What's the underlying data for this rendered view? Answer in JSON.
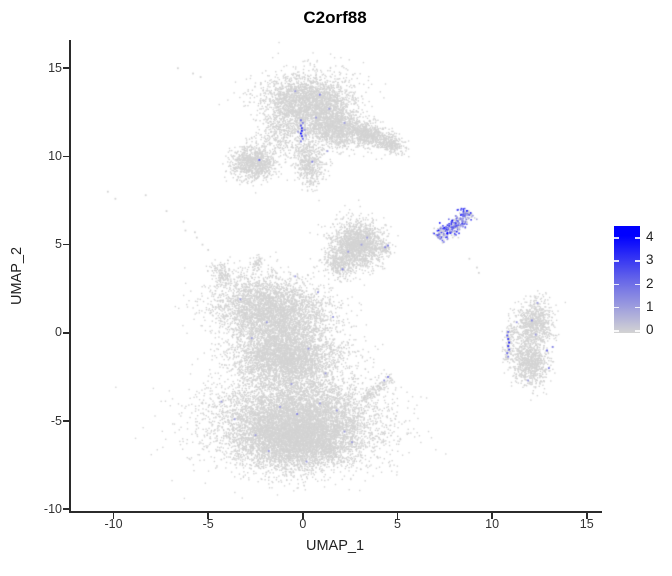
{
  "title": "C2orf88",
  "axes": {
    "x": {
      "label": "UMAP_1",
      "tick_labels": [
        "-10",
        "-5",
        "0",
        "5",
        "10",
        "15"
      ],
      "tick_values": [
        -10,
        -5,
        0,
        5,
        10,
        15
      ]
    },
    "y": {
      "label": "UMAP_2",
      "tick_labels": [
        "15",
        "10",
        "5",
        "0",
        "-5",
        "-10"
      ],
      "tick_values": [
        15,
        10,
        5,
        0,
        -5,
        -10
      ]
    }
  },
  "legend": {
    "tick_labels": [
      "4",
      "3",
      "2",
      "1",
      "0"
    ],
    "tick_values": [
      4,
      3,
      2,
      1,
      0
    ],
    "low_color": "#d3d3d3",
    "high_color": "#0000ff",
    "value_max_shown": 4.6
  },
  "chart_data": {
    "type": "scatter",
    "title": "C2orf88",
    "xlabel": "UMAP_1",
    "ylabel": "UMAP_2",
    "xlim": [
      -12.3,
      15.7
    ],
    "ylim": [
      -10.1,
      16.6
    ],
    "grid": false,
    "legend_position": "right",
    "point_color_low": "#d3d3d3",
    "point_color_high": "#0000ff",
    "color_scale_range": [
      0,
      4
    ],
    "clusters": [
      {
        "name": "top-dome",
        "kind": "gauss",
        "cx": 0.3,
        "cy": 13.0,
        "rx": 2.4,
        "ry": 1.7,
        "rot": 0,
        "n": 2800
      },
      {
        "name": "top-dome-lower-right",
        "kind": "gauss",
        "cx": 1.7,
        "cy": 11.6,
        "rx": 1.5,
        "ry": 1.1,
        "rot": -15,
        "n": 1100
      },
      {
        "name": "top-right-arm",
        "kind": "gauss",
        "cx": 3.5,
        "cy": 11.2,
        "rx": 1.3,
        "ry": 0.7,
        "rot": -18,
        "n": 650
      },
      {
        "name": "top-arm-tip",
        "kind": "gauss",
        "cx": 4.7,
        "cy": 10.7,
        "rx": 0.7,
        "ry": 0.45,
        "rot": -30,
        "n": 220
      },
      {
        "name": "top-left-sparse",
        "kind": "gauss",
        "cx": -1.2,
        "cy": 11.2,
        "rx": 1.1,
        "ry": 1.2,
        "rot": 0,
        "n": 260
      },
      {
        "name": "top-left-blob",
        "kind": "gauss",
        "cx": -2.6,
        "cy": 9.6,
        "rx": 1.15,
        "ry": 1.0,
        "rot": 10,
        "n": 950
      },
      {
        "name": "top-leg",
        "kind": "gauss",
        "cx": 0.35,
        "cy": 9.6,
        "rx": 0.8,
        "ry": 1.3,
        "rot": 5,
        "n": 520
      },
      {
        "name": "mid-triangle",
        "kind": "gauss",
        "cx": 2.9,
        "cy": 5.0,
        "rx": 1.4,
        "ry": 1.3,
        "rot": 0,
        "n": 1600
      },
      {
        "name": "mid-triangle-apex",
        "kind": "gauss",
        "cx": 1.9,
        "cy": 3.9,
        "rx": 0.85,
        "ry": 0.75,
        "rot": -30,
        "n": 320
      },
      {
        "name": "mid-right-nub",
        "kind": "gauss",
        "cx": 4.3,
        "cy": 4.75,
        "rx": 0.45,
        "ry": 0.28,
        "rot": -20,
        "n": 70
      },
      {
        "name": "expression-streak",
        "kind": "line",
        "x1": 7.15,
        "y1": 5.35,
        "x2": 8.85,
        "y2": 6.85,
        "w": 0.22,
        "n": 300,
        "expression": true
      },
      {
        "name": "right-bean-upper",
        "kind": "gauss",
        "cx": 12.2,
        "cy": 0.5,
        "rx": 1.05,
        "ry": 1.4,
        "rot": -10,
        "n": 800
      },
      {
        "name": "right-bean-lower",
        "kind": "gauss",
        "cx": 12.0,
        "cy": -1.7,
        "rx": 0.95,
        "ry": 1.3,
        "rot": 15,
        "n": 800
      },
      {
        "name": "right-crescent",
        "kind": "line",
        "x1": 10.75,
        "y1": -1.6,
        "x2": 11.05,
        "y2": 0.4,
        "w": 0.12,
        "n": 90
      },
      {
        "name": "bottom-upper-dome",
        "kind": "gauss",
        "cx": -1.6,
        "cy": 1.2,
        "rx": 3.0,
        "ry": 2.0,
        "rot": -10,
        "n": 3800
      },
      {
        "name": "bottom-left-horn",
        "kind": "gauss",
        "cx": -4.3,
        "cy": 3.3,
        "rx": 0.5,
        "ry": 0.7,
        "rot": 25,
        "n": 140
      },
      {
        "name": "bottom-top-nub",
        "kind": "gauss",
        "cx": -2.4,
        "cy": 4.0,
        "rx": 0.28,
        "ry": 0.4,
        "rot": 0,
        "n": 50
      },
      {
        "name": "bottom-waist",
        "kind": "gauss",
        "cx": -0.9,
        "cy": -1.4,
        "rx": 2.8,
        "ry": 1.7,
        "rot": 0,
        "n": 3200
      },
      {
        "name": "bottom-bulge",
        "kind": "gauss",
        "cx": -0.4,
        "cy": -5.0,
        "rx": 4.3,
        "ry": 2.6,
        "rot": 0,
        "n": 7000
      },
      {
        "name": "bottom-bulge-core",
        "kind": "gauss",
        "cx": -0.2,
        "cy": -6.2,
        "rx": 2.9,
        "ry": 1.5,
        "rot": 0,
        "n": 2600
      },
      {
        "name": "bottom-right-spur",
        "kind": "line",
        "x1": 3.2,
        "y1": -3.8,
        "x2": 4.65,
        "y2": -2.55,
        "w": 0.15,
        "n": 140
      }
    ],
    "expression_dots": [
      [
        -0.1,
        12.05,
        2
      ],
      [
        0.0,
        11.9,
        1.5
      ],
      [
        -0.1,
        11.75,
        2.5
      ],
      [
        -0.05,
        11.6,
        3
      ],
      [
        -0.05,
        11.45,
        3.5
      ],
      [
        -0.1,
        11.3,
        4
      ],
      [
        -0.05,
        11.15,
        3
      ],
      [
        0.0,
        11.0,
        2
      ],
      [
        -0.1,
        10.85,
        1.5
      ],
      [
        0.1,
        11.5,
        1
      ],
      [
        0.15,
        11.2,
        1
      ],
      [
        -0.25,
        11.4,
        1
      ],
      [
        -0.4,
        13.7,
        1
      ],
      [
        0.9,
        13.5,
        1.5
      ],
      [
        1.4,
        12.7,
        1
      ],
      [
        0.7,
        12.2,
        1
      ],
      [
        2.2,
        11.9,
        1
      ],
      [
        0.5,
        9.7,
        1.5
      ],
      [
        -2.3,
        9.8,
        2
      ],
      [
        1.3,
        10.3,
        1
      ],
      [
        2.4,
        4.6,
        1
      ],
      [
        3.1,
        5.0,
        1
      ],
      [
        2.1,
        3.6,
        1.5
      ],
      [
        3.4,
        5.4,
        1
      ],
      [
        4.35,
        4.85,
        1.5
      ],
      [
        4.5,
        4.95,
        1.5
      ],
      [
        12.4,
        1.7,
        1
      ],
      [
        12.1,
        0.7,
        1.5
      ],
      [
        11.3,
        0.6,
        1
      ],
      [
        13.2,
        -0.8,
        1.5
      ],
      [
        12.9,
        -1.0,
        2
      ],
      [
        13.0,
        -2.0,
        1.5
      ],
      [
        11.9,
        -2.7,
        1
      ],
      [
        12.3,
        -0.1,
        1
      ],
      [
        10.85,
        0.05,
        2
      ],
      [
        10.8,
        -0.15,
        2.5
      ],
      [
        10.85,
        -0.35,
        3
      ],
      [
        10.9,
        -0.55,
        3.5
      ],
      [
        10.85,
        -0.75,
        3
      ],
      [
        10.9,
        -0.95,
        2.5
      ],
      [
        10.8,
        -1.15,
        2
      ],
      [
        10.85,
        -1.35,
        1.5
      ],
      [
        -3.6,
        -4.9,
        1
      ],
      [
        -2.5,
        -5.8,
        1
      ],
      [
        -1.2,
        -4.2,
        1
      ],
      [
        -0.3,
        -4.6,
        1.5
      ],
      [
        0.9,
        -4.0,
        1
      ],
      [
        1.8,
        -4.4,
        1
      ],
      [
        -1.8,
        -6.7,
        1
      ],
      [
        0.2,
        -7.3,
        1
      ],
      [
        2.2,
        -5.6,
        1
      ],
      [
        -0.6,
        -2.9,
        1
      ],
      [
        -4.3,
        -3.9,
        1
      ],
      [
        1.2,
        -2.3,
        1
      ],
      [
        0.3,
        -0.9,
        1
      ],
      [
        -1.9,
        0.6,
        1
      ],
      [
        -3.3,
        1.9,
        1
      ],
      [
        0.8,
        2.3,
        1
      ],
      [
        -0.4,
        3.2,
        1
      ],
      [
        2.6,
        -6.2,
        1
      ],
      [
        -2.7,
        -0.3,
        1
      ],
      [
        1.6,
        0.9,
        1
      ],
      [
        4.5,
        -2.5,
        1.5
      ],
      [
        4.3,
        -2.7,
        1
      ]
    ],
    "outlier_dots": [
      [
        -6.6,
        15.0
      ],
      [
        -5.8,
        14.7
      ],
      [
        -5.4,
        14.5
      ],
      [
        -10.3,
        8.0
      ],
      [
        -9.9,
        7.6
      ],
      [
        -8.3,
        7.8
      ],
      [
        -7.2,
        6.9
      ],
      [
        -6.3,
        6.3
      ],
      [
        -6.2,
        5.8
      ],
      [
        -5.7,
        5.7
      ],
      [
        -5.6,
        5.4
      ],
      [
        -5.3,
        5.0
      ],
      [
        -5.0,
        4.7
      ],
      [
        8.8,
        4.2
      ],
      [
        9.2,
        3.7
      ],
      [
        9.3,
        3.4
      ]
    ]
  }
}
